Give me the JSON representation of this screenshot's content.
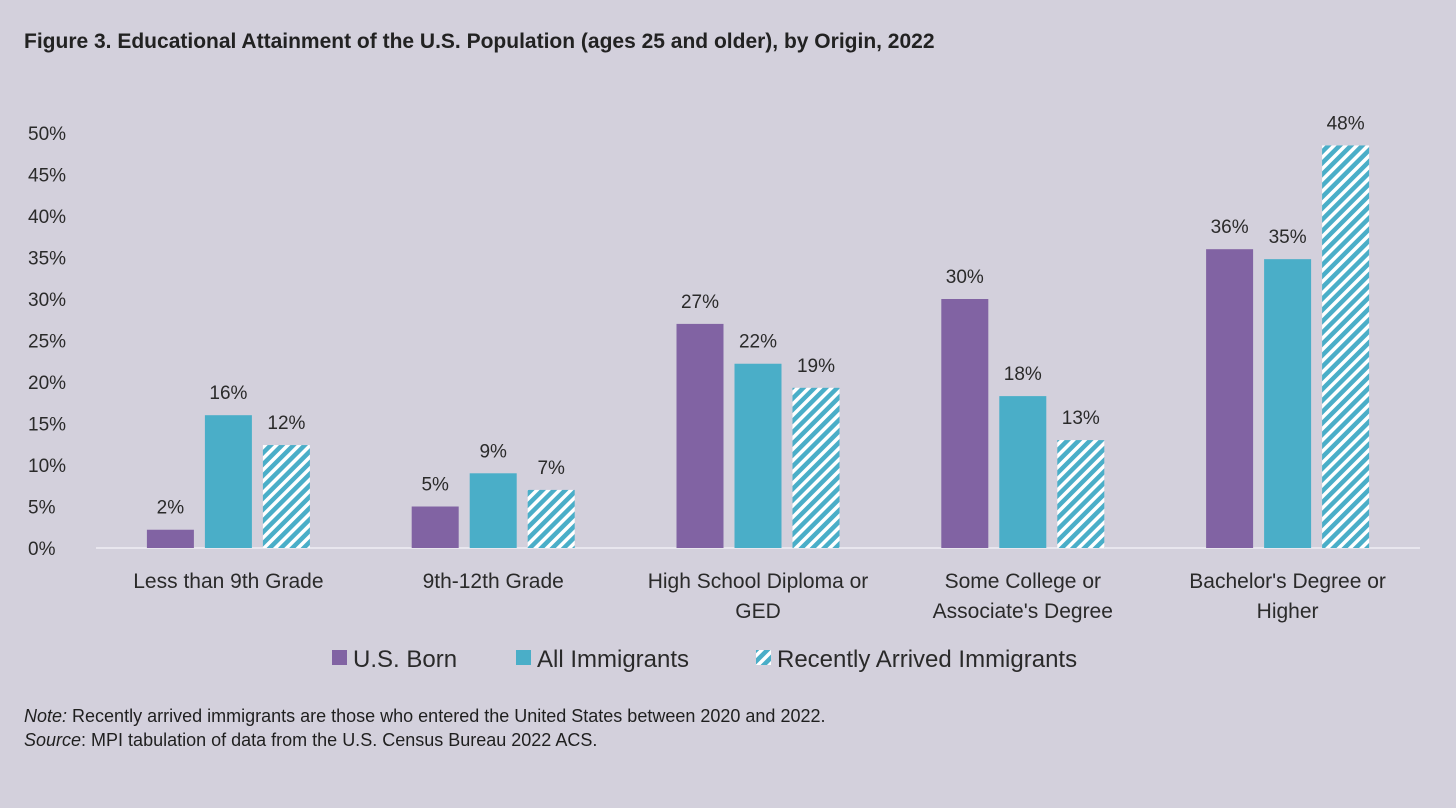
{
  "title": "Figure 3. Educational Attainment of the U.S. Population (ages 25 and older), by Origin, 2022",
  "chart_data": {
    "type": "bar",
    "title": "Figure 3. Educational Attainment of the U.S. Population (ages 25 and older), by Origin, 2022",
    "xlabel": "",
    "ylabel": "",
    "ylim": [
      0,
      50
    ],
    "y_ticks": [
      "0%",
      "5%",
      "10%",
      "15%",
      "20%",
      "25%",
      "30%",
      "35%",
      "40%",
      "45%",
      "50%"
    ],
    "y_tick_values": [
      0,
      5,
      10,
      15,
      20,
      25,
      30,
      35,
      40,
      45,
      50
    ],
    "categories": [
      [
        "Less than 9th Grade"
      ],
      [
        "9th-12th Grade"
      ],
      [
        "High School Diploma or",
        "GED"
      ],
      [
        "Some College or",
        "Associate's Degree"
      ],
      [
        "Bachelor's Degree or",
        "Higher"
      ]
    ],
    "series": [
      {
        "name": "U.S. Born",
        "color": "#8163a3",
        "pattern": "solid",
        "values": [
          2.2,
          5.0,
          27.0,
          30.0,
          36.0
        ],
        "labels": [
          "2%",
          "5%",
          "27%",
          "30%",
          "36%"
        ]
      },
      {
        "name": "All Immigrants",
        "color": "#4aaec8",
        "pattern": "solid",
        "values": [
          16.0,
          9.0,
          22.2,
          18.3,
          34.8
        ],
        "labels": [
          "16%",
          "9%",
          "22%",
          "18%",
          "35%"
        ]
      },
      {
        "name": "Recently Arrived Immigrants",
        "color": "#4aaec8",
        "pattern": "hatch",
        "values": [
          12.4,
          7.0,
          19.3,
          13.0,
          48.5
        ],
        "labels": [
          "12%",
          "7%",
          "19%",
          "13%",
          "48%"
        ]
      }
    ],
    "grid": false,
    "legend_position": "bottom"
  },
  "notes": {
    "note_label": "Note:",
    "note_text": " Recently arrived immigrants are those who entered the United States between 2020 and 2022.",
    "source_label": "Source",
    "source_text": ": MPI tabulation of data from the U.S. Census Bureau 2022 ACS."
  }
}
